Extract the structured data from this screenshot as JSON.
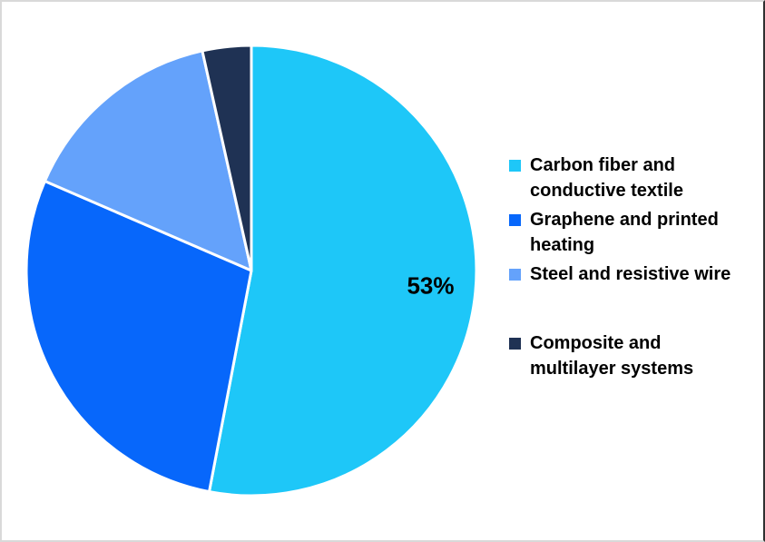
{
  "chart_data": {
    "type": "pie",
    "title": "",
    "categories": [
      "Carbon fiber and conductive textile",
      "Graphene and printed heating",
      "Steel and resistive wire",
      "Composite and multilayer systems"
    ],
    "values": [
      53,
      28.5,
      15,
      3.5
    ],
    "unit": "percent",
    "colors": [
      "#1EC7F8",
      "#0767FB",
      "#64A2FB",
      "#1F3254"
    ],
    "data_labels": [
      "53%",
      "",
      "",
      ""
    ],
    "start_angle_deg": 0,
    "direction": "clockwise",
    "legend_position": "right",
    "separator_color": "#FFFFFF",
    "label_color": "#000000"
  },
  "legend": {
    "items": [
      {
        "display_label": "Carbon fiber and\nconductive textile",
        "color": "#1EC7F8",
        "spaced": false
      },
      {
        "display_label": "Graphene and printed\nheating",
        "color": "#0767FB",
        "spaced": false
      },
      {
        "display_label": "Steel and resistive wire",
        "color": "#64A2FB",
        "spaced": false
      },
      {
        "display_label": "Composite and\nmultilayer systems",
        "color": "#1F3254",
        "spaced": true
      }
    ]
  }
}
